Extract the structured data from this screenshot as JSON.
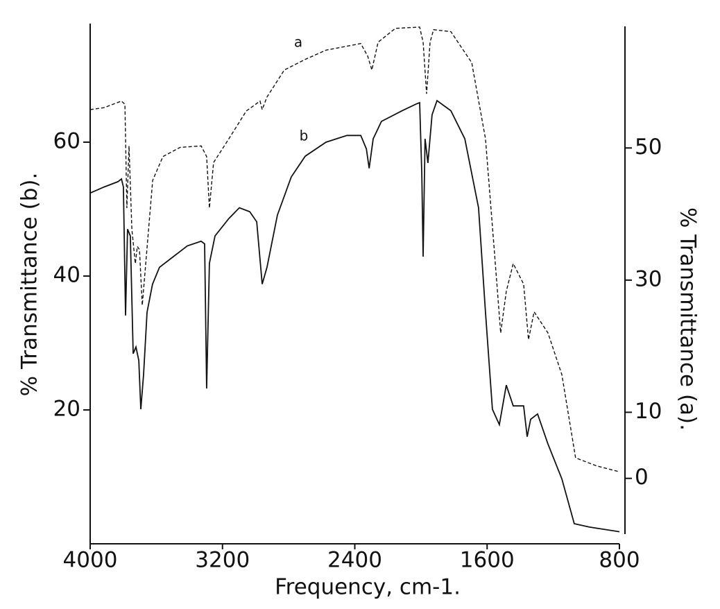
{
  "chart_data": {
    "type": "line",
    "xlabel": "Frequency, cm-1.",
    "ylabel": "% Transmittance (b).",
    "y2label": "% Transmittance (a).",
    "xlim": [
      4000,
      800
    ],
    "xticks": [
      4000,
      3200,
      2400,
      1600,
      800
    ],
    "ylim": [
      0,
      77.3
    ],
    "yticks": [
      20,
      40,
      60
    ],
    "y2lim": [
      -9.9,
      68.4
    ],
    "y2ticks": [
      0,
      10,
      30,
      50
    ],
    "series": [
      {
        "name": "b",
        "color": "#111111",
        "dash": "solid",
        "x": [
          4000,
          3916,
          3832,
          3811,
          3799,
          3786,
          3774,
          3757,
          3740,
          3723,
          3706,
          3694,
          3677,
          3656,
          3623,
          3581,
          3497,
          3413,
          3329,
          3308,
          3296,
          3279,
          3245,
          3161,
          3098,
          3035,
          2993,
          2960,
          2931,
          2868,
          2784,
          2700,
          2574,
          2448,
          2364,
          2330,
          2313,
          2289,
          2239,
          2113,
          2029,
          2008,
          1995,
          1987,
          1975,
          1958,
          1933,
          1903,
          1819,
          1735,
          1652,
          1610,
          1568,
          1526,
          1484,
          1442,
          1379,
          1358,
          1337,
          1295,
          1232,
          1148,
          1073,
          981,
          800
        ],
        "values": [
          52.4,
          53.3,
          54.1,
          54.5,
          53.3,
          34.1,
          47.0,
          46.0,
          28.4,
          29.4,
          27.4,
          20.1,
          25.3,
          34.6,
          38.8,
          41.3,
          42.9,
          44.5,
          45.2,
          44.8,
          23.2,
          41.9,
          46.0,
          48.6,
          50.2,
          49.6,
          48.1,
          38.8,
          41.3,
          49.1,
          54.8,
          57.9,
          60.0,
          61.0,
          61.0,
          59.0,
          56.1,
          60.5,
          63.1,
          64.7,
          65.7,
          65.9,
          55.3,
          42.9,
          60.5,
          56.9,
          64.1,
          66.2,
          64.7,
          60.5,
          50.2,
          34.6,
          20.1,
          17.8,
          23.7,
          20.6,
          20.6,
          16.0,
          18.6,
          19.4,
          14.9,
          9.7,
          3.0,
          2.5,
          1.8
        ]
      },
      {
        "name": "a",
        "color": "#111111",
        "dash": "dashed",
        "axis": "y2",
        "x": [
          4000,
          3916,
          3811,
          3790,
          3778,
          3765,
          3748,
          3727,
          3715,
          3702,
          3685,
          3664,
          3622,
          3560,
          3455,
          3329,
          3296,
          3279,
          3254,
          3161,
          3056,
          2973,
          2960,
          2931,
          2826,
          2700,
          2574,
          2364,
          2322,
          2297,
          2259,
          2155,
          2008,
          1987,
          1966,
          1945,
          1924,
          1819,
          1693,
          1610,
          1560,
          1518,
          1484,
          1442,
          1379,
          1350,
          1316,
          1232,
          1148,
          1065,
          939,
          800
        ],
        "values": [
          55.8,
          56.1,
          57.1,
          56.6,
          40.9,
          50.3,
          37.7,
          32.5,
          35.1,
          34.6,
          26.2,
          32.5,
          45.1,
          48.7,
          50.1,
          50.3,
          48.7,
          40.9,
          47.8,
          51.4,
          55.6,
          57.1,
          55.8,
          57.7,
          61.8,
          63.4,
          64.8,
          65.8,
          63.9,
          61.8,
          66.0,
          68.1,
          68.3,
          66.0,
          58.2,
          66.0,
          67.9,
          67.6,
          62.9,
          51.4,
          35.6,
          22.0,
          28.3,
          32.5,
          29.4,
          21.0,
          25.2,
          22.0,
          15.7,
          3.1,
          1.9,
          1.0
        ]
      }
    ]
  }
}
